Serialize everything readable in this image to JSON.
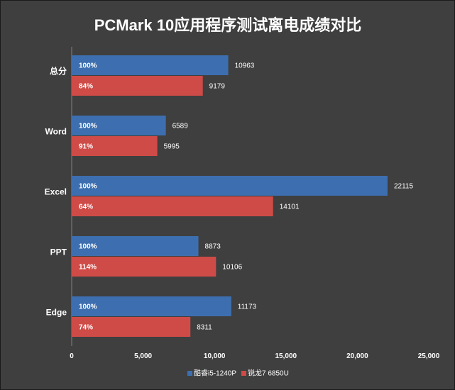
{
  "chart_data": {
    "type": "bar",
    "orientation": "horizontal",
    "title": "PCMark 10应用程序测试离电成绩对比",
    "categories": [
      "总分",
      "Word",
      "Excel",
      "PPT",
      "Edge"
    ],
    "series": [
      {
        "name": "酷睿i5-1240P",
        "color": "#3d6fb0",
        "values": [
          10963,
          6589,
          22115,
          8873,
          11173
        ],
        "percent_labels": [
          "100%",
          "100%",
          "100%",
          "100%",
          "100%"
        ]
      },
      {
        "name": "锐龙7 6850U",
        "color": "#cf4b47",
        "values": [
          9179,
          5995,
          14101,
          10106,
          8311
        ],
        "percent_labels": [
          "84%",
          "91%",
          "64%",
          "114%",
          "74%"
        ]
      }
    ],
    "xlim": [
      0,
      25000
    ],
    "xticks": [
      0,
      5000,
      10000,
      15000,
      20000,
      25000
    ],
    "xtick_labels": [
      "0",
      "5,000",
      "10,000",
      "15,000",
      "20,000",
      "25,000"
    ],
    "xlabel": "",
    "ylabel": "",
    "grid": false,
    "legend_position": "bottom"
  }
}
